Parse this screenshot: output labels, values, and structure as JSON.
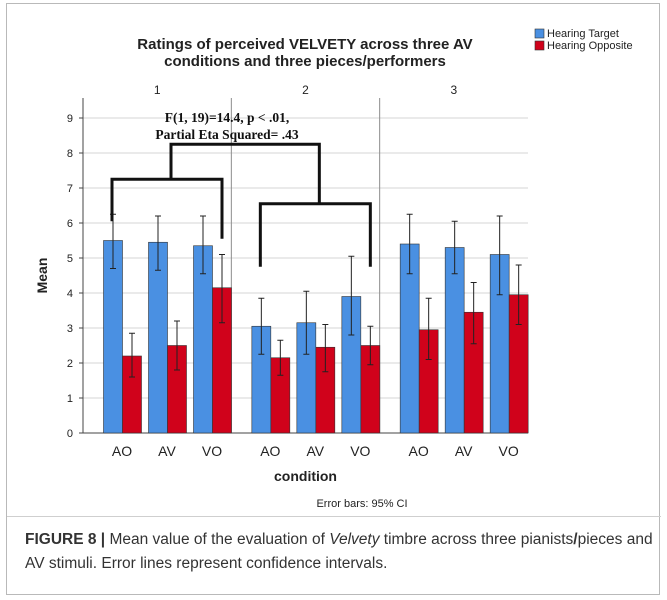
{
  "chart_data": {
    "type": "bar",
    "title": "Ratings of perceived VELVETY across three AV conditions and three pieces/performers",
    "title_lines": [
      "Ratings of perceived VELVETY across three AV",
      "conditions and three pieces/performers"
    ],
    "xlabel": "condition",
    "ylabel": "Mean",
    "ylim": [
      0,
      9
    ],
    "yticks": [
      0,
      1,
      2,
      3,
      4,
      5,
      6,
      7,
      8,
      9
    ],
    "categories": [
      "AO",
      "AV",
      "VO"
    ],
    "grid": true,
    "legend": "top-right",
    "footnote": "Error bars: 95% CI",
    "annotation": [
      "F(1, 19)=14.4, p < .01,",
      "Partial Eta Squared= .43"
    ],
    "panels": [
      {
        "label": "1",
        "series": [
          {
            "name": "Hearing Target",
            "color": "#4a90e2",
            "values": [
              5.5,
              5.45,
              5.35
            ],
            "ci_low": [
              4.7,
              4.65,
              4.55
            ],
            "ci_high": [
              6.25,
              6.2,
              6.2
            ]
          },
          {
            "name": "Hearing Opposite",
            "color": "#d0021b",
            "values": [
              2.2,
              2.5,
              4.15
            ],
            "ci_low": [
              1.6,
              1.8,
              3.15
            ],
            "ci_high": [
              2.85,
              3.2,
              5.1
            ]
          }
        ]
      },
      {
        "label": "2",
        "series": [
          {
            "name": "Hearing Target",
            "color": "#4a90e2",
            "values": [
              3.05,
              3.15,
              3.9
            ],
            "ci_low": [
              2.25,
              2.25,
              2.8
            ],
            "ci_high": [
              3.85,
              4.05,
              5.05
            ]
          },
          {
            "name": "Hearing Opposite",
            "color": "#d0021b",
            "values": [
              2.15,
              2.45,
              2.5
            ],
            "ci_low": [
              1.65,
              1.75,
              1.95
            ],
            "ci_high": [
              2.65,
              3.1,
              3.05
            ]
          }
        ]
      },
      {
        "label": "3",
        "series": [
          {
            "name": "Hearing Target",
            "color": "#4a90e2",
            "values": [
              5.4,
              5.3,
              5.1
            ],
            "ci_low": [
              4.55,
              4.55,
              3.95
            ],
            "ci_high": [
              6.25,
              6.05,
              6.2
            ]
          },
          {
            "name": "Hearing Opposite",
            "color": "#d0021b",
            "values": [
              2.95,
              3.45,
              3.95
            ],
            "ci_low": [
              2.1,
              2.55,
              3.1
            ],
            "ci_high": [
              3.85,
              4.3,
              4.8
            ]
          }
        ]
      }
    ],
    "brackets": [
      {
        "from_panel": 0,
        "to_panel": 0,
        "level": 7.25,
        "drop": [
          6.05,
          5.55
        ]
      },
      {
        "from_panel": 1,
        "to_panel": 1,
        "level": 6.55,
        "drop": [
          4.75,
          4.75
        ]
      },
      {
        "from_panel": 0,
        "to_panel": 1,
        "level": 8.25,
        "drop": [
          7.25,
          6.55
        ]
      }
    ]
  },
  "caption": {
    "label": "FIGURE 8 |",
    "text_before": " Mean value of the evaluation of ",
    "emph": "Velvety",
    "text_middle": " timbre across three pianists",
    "slash": "/",
    "text_after": "pieces and AV stimuli. Error lines represent confidence intervals."
  }
}
